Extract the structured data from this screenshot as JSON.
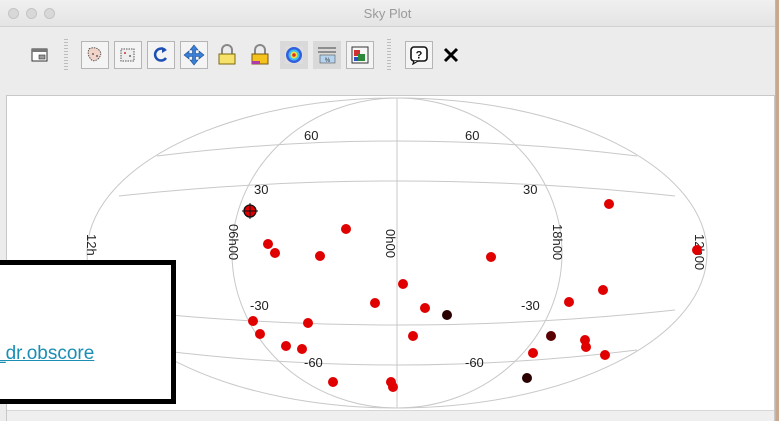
{
  "window": {
    "title": "Sky Plot"
  },
  "toolbar": {
    "buttons": [
      {
        "name": "window-icon"
      },
      {
        "name": "select-region-icon"
      },
      {
        "name": "select-box-icon"
      },
      {
        "name": "rotate-icon"
      },
      {
        "name": "pan-icon"
      },
      {
        "name": "lock-aspect-icon"
      },
      {
        "name": "lock-scale-icon"
      },
      {
        "name": "density-map-icon"
      },
      {
        "name": "grid-icon"
      },
      {
        "name": "legend-icon"
      },
      {
        "name": "help-icon"
      },
      {
        "name": "close-icon"
      }
    ]
  },
  "colors": {
    "point": "#e00000",
    "point_dark": "#5a0000",
    "point_darker": "#2a0000"
  },
  "plot": {
    "lat_labels": [
      "60",
      "60",
      "30",
      "30",
      "-30",
      "-30",
      "-60",
      "-60"
    ],
    "lon_labels": [
      "12h",
      "06h00",
      "0h00",
      "18h00",
      "12h00"
    ]
  },
  "callout": {
    "link_text": "_dr.obscore"
  }
}
